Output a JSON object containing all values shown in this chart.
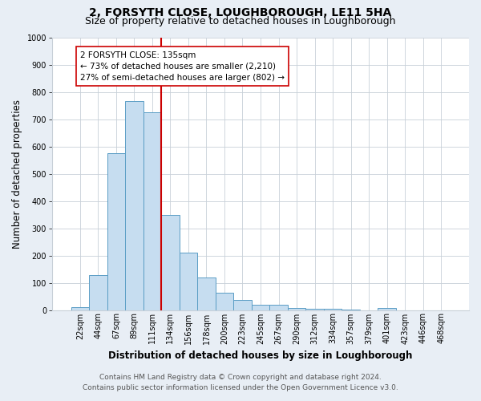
{
  "title": "2, FORSYTH CLOSE, LOUGHBOROUGH, LE11 5HA",
  "subtitle": "Size of property relative to detached houses in Loughborough",
  "xlabel": "Distribution of detached houses by size in Loughborough",
  "ylabel": "Number of detached properties",
  "categories": [
    "22sqm",
    "44sqm",
    "67sqm",
    "89sqm",
    "111sqm",
    "134sqm",
    "156sqm",
    "178sqm",
    "200sqm",
    "223sqm",
    "245sqm",
    "267sqm",
    "290sqm",
    "312sqm",
    "334sqm",
    "357sqm",
    "379sqm",
    "401sqm",
    "423sqm",
    "446sqm",
    "468sqm"
  ],
  "values": [
    10,
    128,
    575,
    765,
    725,
    350,
    210,
    120,
    62,
    37,
    20,
    20,
    8,
    5,
    3,
    2,
    0,
    7,
    0,
    0,
    0
  ],
  "bar_color": "#c6ddf0",
  "bar_edge_color": "#5a9dc5",
  "vline_index": 5,
  "vline_color": "#cc0000",
  "ylim": [
    0,
    1000
  ],
  "yticks": [
    0,
    100,
    200,
    300,
    400,
    500,
    600,
    700,
    800,
    900,
    1000
  ],
  "annotation_text": "2 FORSYTH CLOSE: 135sqm\n← 73% of detached houses are smaller (2,210)\n27% of semi-detached houses are larger (802) →",
  "annotation_box_color": "#ffffff",
  "annotation_box_edge": "#cc0000",
  "footer_line1": "Contains HM Land Registry data © Crown copyright and database right 2024.",
  "footer_line2": "Contains public sector information licensed under the Open Government Licence v3.0.",
  "background_color": "#e8eef5",
  "plot_background": "#ffffff",
  "grid_color": "#c8d0d8",
  "title_fontsize": 10,
  "subtitle_fontsize": 9,
  "axis_label_fontsize": 8.5,
  "tick_fontsize": 7,
  "annotation_fontsize": 7.5,
  "footer_fontsize": 6.5
}
